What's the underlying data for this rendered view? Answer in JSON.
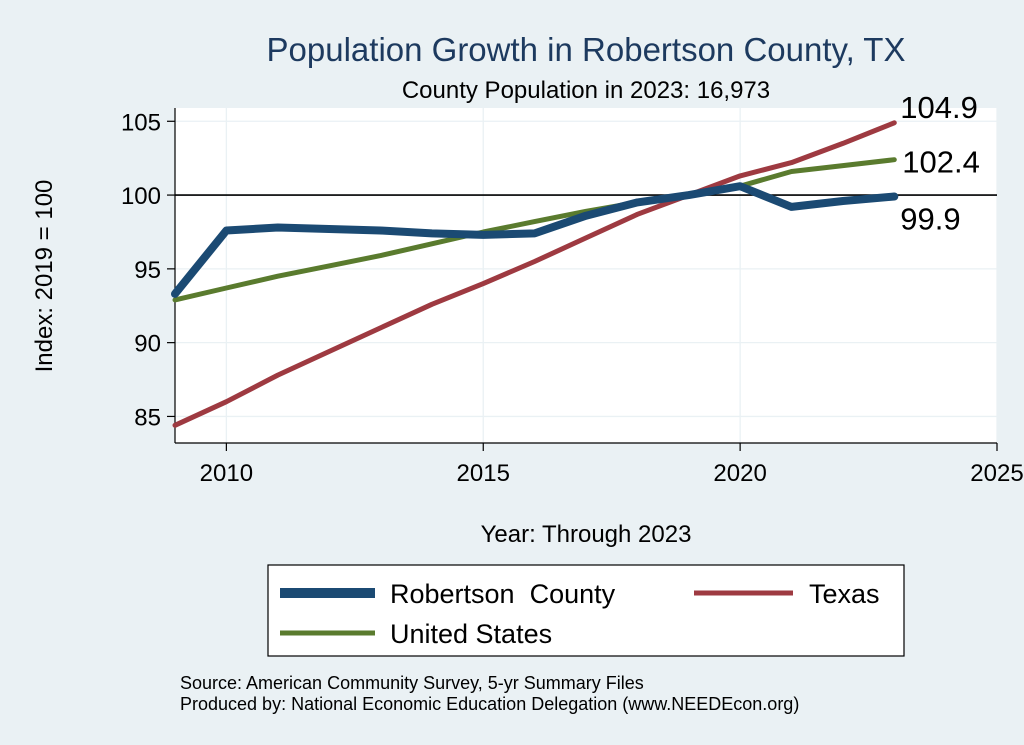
{
  "chart_data": {
    "type": "line",
    "title": "Population Growth in Robertson County, TX",
    "subtitle": "County Population in 2023: 16,973",
    "xlabel": "Year: Through 2023",
    "ylabel": "Index: 2019 = 100",
    "xlim": [
      2009,
      2025
    ],
    "ylim": [
      83.2,
      105.9
    ],
    "x_ticks": [
      2010,
      2015,
      2020,
      2025
    ],
    "y_ticks": [
      85,
      90,
      95,
      100,
      105
    ],
    "reference_line": 100,
    "grid": true,
    "legend_position": "bottom",
    "x": [
      2009,
      2010,
      2011,
      2012,
      2013,
      2014,
      2015,
      2016,
      2017,
      2018,
      2019,
      2020,
      2021,
      2022,
      2023
    ],
    "series": [
      {
        "name": "Robertson  County",
        "color": "#1b4a73",
        "values": [
          93.3,
          97.6,
          97.8,
          97.7,
          97.6,
          97.4,
          97.3,
          97.4,
          98.6,
          99.5,
          100.0,
          100.6,
          99.2,
          99.6,
          99.9
        ],
        "end_label": "99.9"
      },
      {
        "name": "Texas",
        "color": "#9e3a41",
        "values": [
          84.4,
          86.0,
          87.8,
          89.4,
          91.0,
          92.6,
          94.0,
          95.5,
          97.1,
          98.7,
          100.0,
          101.3,
          102.2,
          103.5,
          104.9
        ],
        "end_label": "104.9"
      },
      {
        "name": "United States",
        "color": "#5a7b2e",
        "values": [
          92.9,
          93.7,
          94.5,
          95.2,
          95.9,
          96.7,
          97.5,
          98.2,
          98.9,
          99.5,
          100.0,
          100.6,
          101.6,
          102.0,
          102.4
        ],
        "end_label": "102.4"
      }
    ]
  },
  "footer": {
    "source": "Source: American Community Survey, 5-yr Summary Files",
    "produced": "Produced by: National Economic Education Delegation (www.NEEDEcon.org)"
  }
}
